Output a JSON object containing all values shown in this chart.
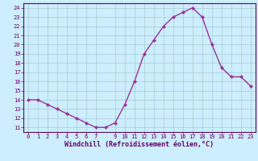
{
  "x": [
    0,
    1,
    2,
    3,
    4,
    5,
    6,
    7,
    8,
    9,
    10,
    11,
    12,
    13,
    14,
    15,
    16,
    17,
    18,
    19,
    20,
    21,
    22,
    23
  ],
  "y": [
    14,
    14,
    13.5,
    13,
    12.5,
    12,
    11.5,
    11,
    11,
    11.5,
    13.5,
    16,
    19,
    20.5,
    22,
    23,
    23.5,
    24,
    23,
    20,
    17.5,
    16.5,
    16.5,
    15.5
  ],
  "xlabel": "Windchill (Refroidissement éolien,°C)",
  "ylim": [
    10.5,
    24.5
  ],
  "xlim": [
    -0.5,
    23.5
  ],
  "yticks": [
    11,
    12,
    13,
    14,
    15,
    16,
    17,
    18,
    19,
    20,
    21,
    22,
    23,
    24
  ],
  "xticks": [
    0,
    1,
    2,
    3,
    4,
    5,
    6,
    7,
    9,
    10,
    11,
    12,
    13,
    14,
    15,
    16,
    17,
    18,
    19,
    20,
    21,
    22,
    23
  ],
  "line_color": "#993399",
  "marker": "D",
  "marker_size": 2.0,
  "bg_color": "#cceeff",
  "grid_color": "#aacccc",
  "label_color": "#660066",
  "tick_color": "#660066",
  "spine_color": "#660066",
  "font_family": "monospace",
  "tick_fontsize": 5.0,
  "xlabel_fontsize": 6.0
}
